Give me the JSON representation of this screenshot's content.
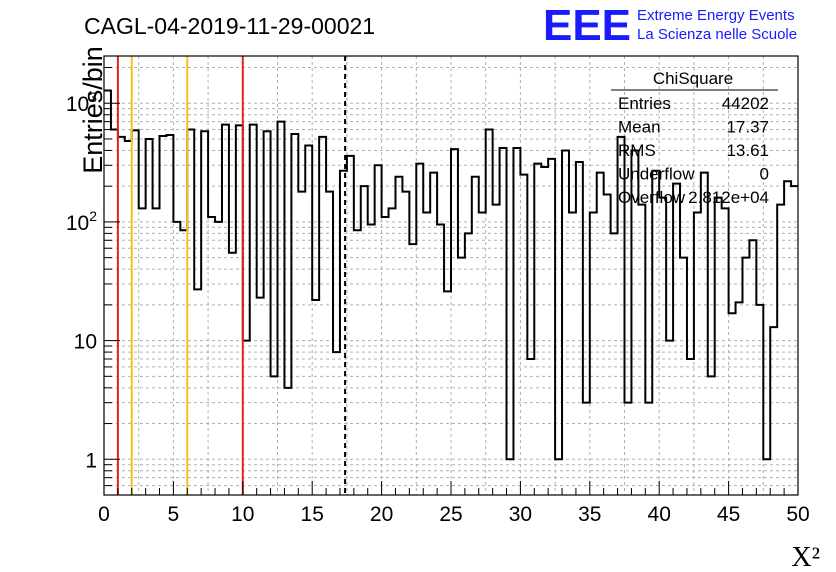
{
  "header": {
    "title": "CAGL-04-2019-11-29-00021",
    "logo_text": "EEE",
    "logo_line1": "Extreme Energy Events",
    "logo_line2": "La Scienza nelle Scuole"
  },
  "stats_box": {
    "title": "ChiSquare",
    "rows": [
      {
        "label": "Entries",
        "value": "44202"
      },
      {
        "label": "Mean",
        "value": "17.37"
      },
      {
        "label": "RMS",
        "value": "13.61"
      },
      {
        "label": "Underflow",
        "value": "0"
      },
      {
        "label": "Overflow",
        "value": "2.812e+04"
      }
    ]
  },
  "colors": {
    "red": "#e8221a",
    "yellow": "#f2c21a",
    "blue": "#1a1aff",
    "grid": "#b0b0b0"
  },
  "chart_data": {
    "type": "histogram",
    "xlabel": "X²",
    "ylabel": "Entries/bin",
    "xlim": [
      0,
      50
    ],
    "ylim": [
      0.5,
      2500
    ],
    "yscale": "log",
    "x_ticks": [
      "0",
      "5",
      "10",
      "15",
      "20",
      "25",
      "30",
      "35",
      "40",
      "45",
      "50"
    ],
    "y_ticks": [
      {
        "value": 1,
        "label": "1"
      },
      {
        "value": 10,
        "label": "10"
      },
      {
        "value": 100,
        "label": "10²"
      },
      {
        "value": 1000,
        "label": "10³"
      }
    ],
    "grid": true,
    "bin_width": 0.5,
    "bin_start": 0,
    "values": [
      1280,
      600,
      520,
      480,
      590,
      130,
      500,
      130,
      530,
      540,
      100,
      85,
      600,
      27,
      580,
      110,
      100,
      660,
      55,
      650,
      10,
      660,
      23,
      580,
      5,
      700,
      4,
      550,
      180,
      440,
      22,
      520,
      180,
      8,
      270,
      360,
      85,
      200,
      95,
      300,
      110,
      130,
      240,
      180,
      65,
      310,
      120,
      260,
      95,
      26,
      410,
      50,
      80,
      240,
      120,
      600,
      140,
      420,
      1,
      420,
      250,
      7,
      310,
      290,
      340,
      1,
      400,
      120,
      320,
      3,
      120,
      260,
      170,
      80,
      520,
      3,
      400,
      140,
      3,
      270,
      160,
      10,
      210,
      50,
      7,
      120,
      260,
      5,
      160,
      130,
      17,
      21,
      50,
      70,
      20,
      1,
      13,
      140,
      220,
      200
    ],
    "vertical_lines": [
      {
        "x": 1,
        "color": "red",
        "style": "solid"
      },
      {
        "x": 2,
        "color": "yellow",
        "style": "solid"
      },
      {
        "x": 6,
        "color": "yellow",
        "style": "solid"
      },
      {
        "x": 10,
        "color": "red",
        "style": "solid"
      },
      {
        "x": 17.37,
        "color": "black",
        "style": "dashed"
      }
    ]
  }
}
